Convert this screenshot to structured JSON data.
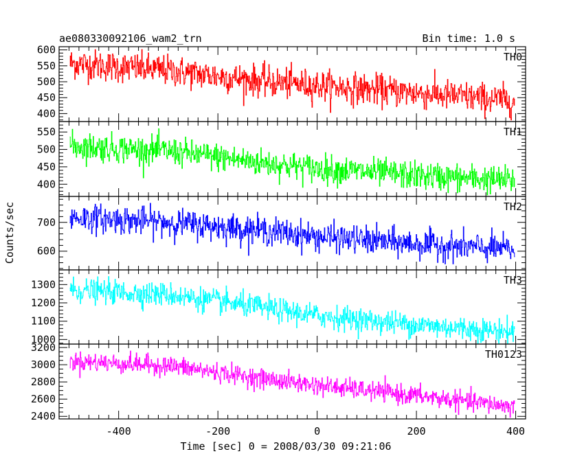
{
  "chart_data": {
    "type": "line",
    "title": "ae080330092106_wam2_trn",
    "bin_time_label": "Bin time: 1.0 s",
    "xlabel": "Time [sec] 0 = 2008/03/30 09:21:06",
    "ylabel": "Counts/sec",
    "xlim": [
      -520,
      420
    ],
    "x_ticks": [
      -400,
      -200,
      0,
      200,
      400
    ],
    "x_range": [
      -498,
      398
    ],
    "grid": false,
    "panels": [
      {
        "name": "TH0",
        "color": "#ff0000",
        "ylim": [
          375,
          610
        ],
        "y_ticks": [
          400,
          450,
          500,
          550,
          600
        ],
        "y_minor_step": 10,
        "trend": [
          {
            "x": -498,
            "y": 558
          },
          {
            "x": -300,
            "y": 535
          },
          {
            "x": -100,
            "y": 500
          },
          {
            "x": 0,
            "y": 488
          },
          {
            "x": 200,
            "y": 465
          },
          {
            "x": 398,
            "y": 440
          }
        ],
        "noise_sigma": 24
      },
      {
        "name": "TH1",
        "color": "#00ff00",
        "ylim": [
          365,
          580
        ],
        "y_ticks": [
          400,
          450,
          500,
          550
        ],
        "y_minor_step": 10,
        "trend": [
          {
            "x": -498,
            "y": 510
          },
          {
            "x": -300,
            "y": 495
          },
          {
            "x": -100,
            "y": 460
          },
          {
            "x": 0,
            "y": 445
          },
          {
            "x": 200,
            "y": 425
          },
          {
            "x": 398,
            "y": 410
          }
        ],
        "noise_sigma": 20
      },
      {
        "name": "TH2",
        "color": "#0000ff",
        "ylim": [
          535,
          790
        ],
        "y_ticks": [
          600,
          700
        ],
        "y_minor_step": 20,
        "trend": [
          {
            "x": -498,
            "y": 718
          },
          {
            "x": -300,
            "y": 700
          },
          {
            "x": -100,
            "y": 670
          },
          {
            "x": 0,
            "y": 650
          },
          {
            "x": 200,
            "y": 625
          },
          {
            "x": 398,
            "y": 605
          }
        ],
        "noise_sigma": 24
      },
      {
        "name": "TH3",
        "color": "#00ffff",
        "ylim": [
          975,
          1380
        ],
        "y_ticks": [
          1000,
          1100,
          1200,
          1300
        ],
        "y_minor_step": 20,
        "trend": [
          {
            "x": -498,
            "y": 1270
          },
          {
            "x": -300,
            "y": 1245
          },
          {
            "x": -100,
            "y": 1170
          },
          {
            "x": 0,
            "y": 1130
          },
          {
            "x": 200,
            "y": 1080
          },
          {
            "x": 398,
            "y": 1040
          }
        ],
        "noise_sigma": 32
      },
      {
        "name": "TH0123",
        "color": "#ff00ff",
        "ylim": [
          2370,
          3240
        ],
        "y_ticks": [
          2400,
          2600,
          2800,
          3000,
          3200
        ],
        "y_minor_step": 50,
        "trend": [
          {
            "x": -498,
            "y": 3040
          },
          {
            "x": -300,
            "y": 2990
          },
          {
            "x": -100,
            "y": 2830
          },
          {
            "x": 0,
            "y": 2760
          },
          {
            "x": 200,
            "y": 2640
          },
          {
            "x": 398,
            "y": 2510
          }
        ],
        "noise_sigma": 55
      }
    ]
  }
}
